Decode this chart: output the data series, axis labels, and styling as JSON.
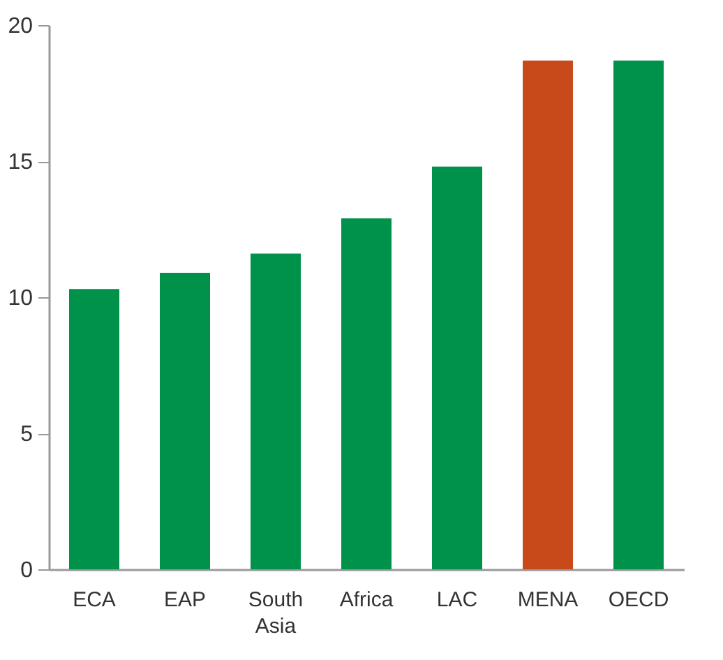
{
  "chart_data": {
    "type": "bar",
    "categories": [
      "ECA",
      "EAP",
      "South Asia",
      "Africa",
      "LAC",
      "MENA",
      "OECD"
    ],
    "values": [
      10.3,
      10.9,
      11.6,
      12.9,
      14.8,
      18.7,
      18.7
    ],
    "colors": [
      "#00914a",
      "#00914a",
      "#00914a",
      "#00914a",
      "#00914a",
      "#c84a1a",
      "#00914a"
    ],
    "ylim": [
      0,
      20
    ],
    "yticks": [
      0,
      5,
      10,
      15,
      20
    ],
    "grid": false
  }
}
